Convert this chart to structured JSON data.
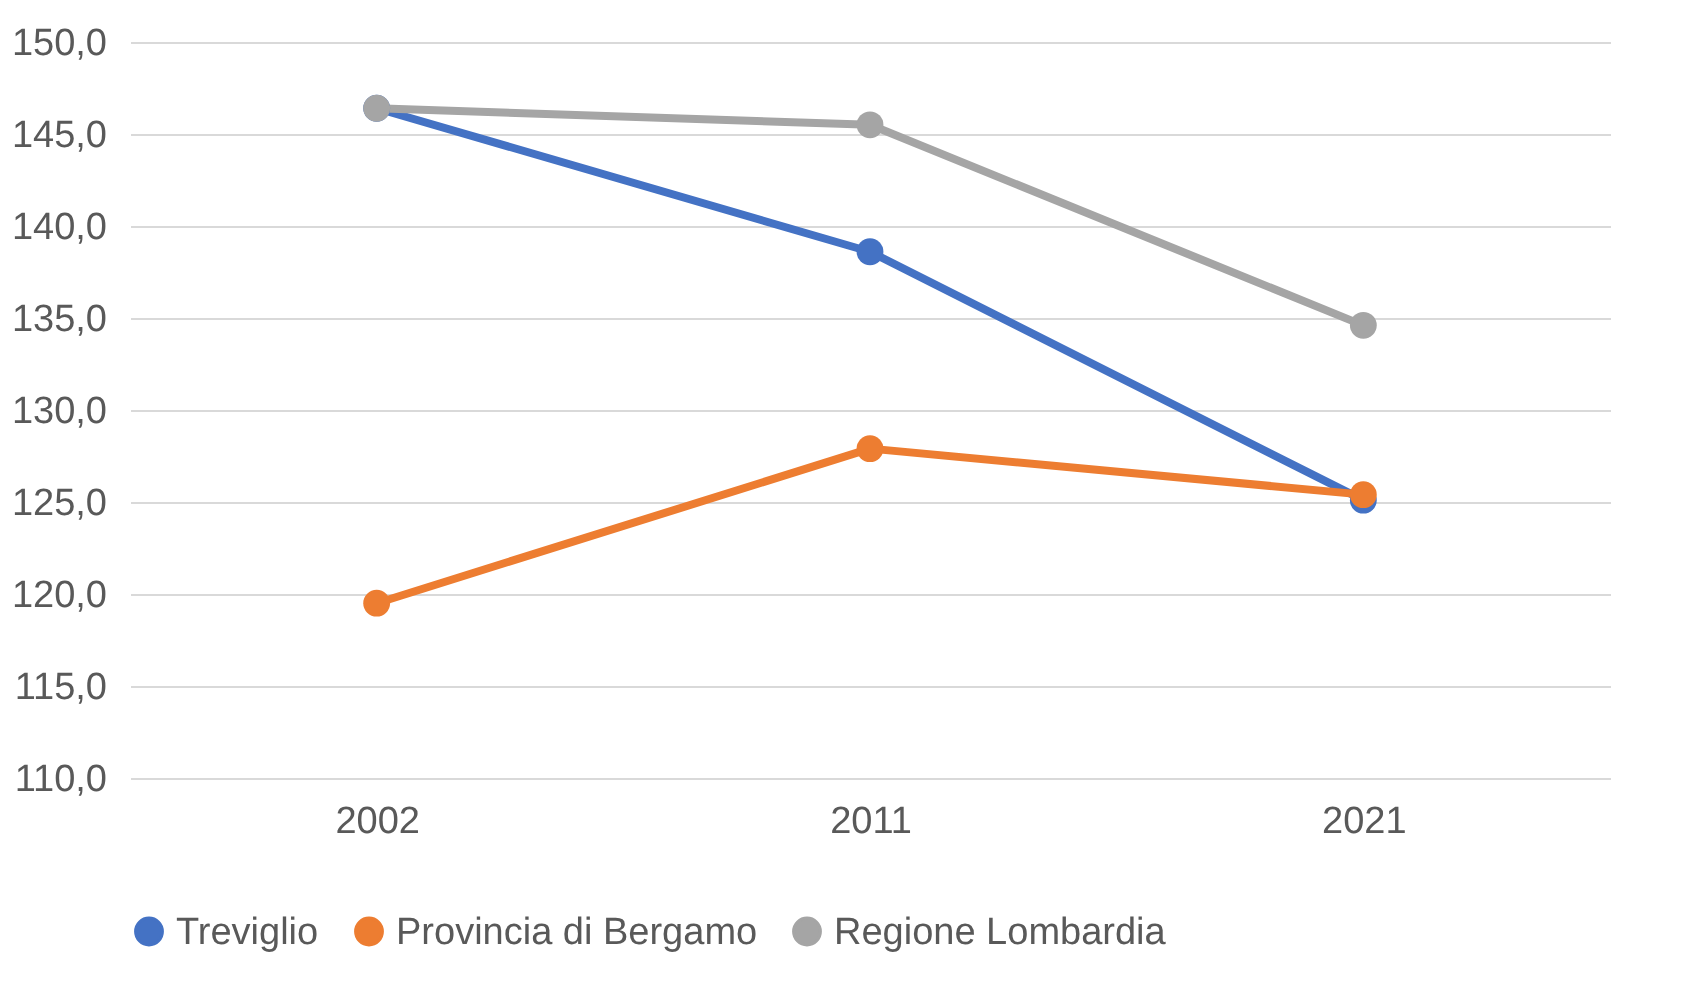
{
  "chart_data": {
    "type": "line",
    "categories": [
      "2002",
      "2011",
      "2021"
    ],
    "series": [
      {
        "name": "Treviglio",
        "color": "#4472c4",
        "values": [
          146.4,
          138.6,
          125.1
        ]
      },
      {
        "name": "Provincia di Bergamo",
        "color": "#ed7d31",
        "values": [
          119.5,
          127.9,
          125.4
        ]
      },
      {
        "name": "Regione Lombardia",
        "color": "#a5a5a5",
        "values": [
          146.4,
          145.5,
          134.6
        ]
      }
    ],
    "ylim": [
      110,
      150
    ],
    "yticks": [
      {
        "value": 110,
        "label": "110,0"
      },
      {
        "value": 115,
        "label": "115,0"
      },
      {
        "value": 120,
        "label": "120,0"
      },
      {
        "value": 125,
        "label": "125,0"
      },
      {
        "value": 130,
        "label": "130,0"
      },
      {
        "value": 135,
        "label": "135,0"
      },
      {
        "value": 140,
        "label": "140,0"
      },
      {
        "value": 145,
        "label": "145,0"
      },
      {
        "value": 150,
        "label": "150,0"
      }
    ],
    "grid": "y",
    "legend": "bottom",
    "marker": "circle",
    "line_style": "solid"
  }
}
